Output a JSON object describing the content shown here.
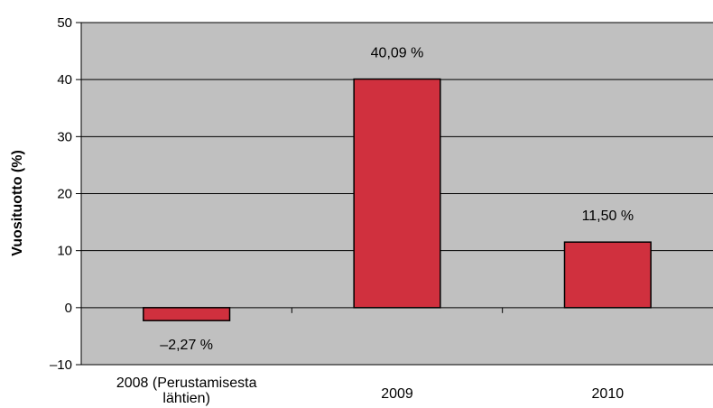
{
  "chart_data": {
    "type": "bar",
    "categories": [
      "2008 (Perustamisesta lähtien)",
      "2009",
      "2010"
    ],
    "category_lines": [
      [
        "2008 (Perustamisesta",
        "lähtien)"
      ],
      [
        "2009"
      ],
      [
        "2010"
      ]
    ],
    "values": [
      -2.27,
      40.09,
      11.5
    ],
    "data_labels": [
      "–2,27 %",
      "40,09 %",
      "11,50 %"
    ],
    "title": "",
    "xlabel": "",
    "ylabel": "Vuosituotto (%)",
    "ylim": [
      -10,
      50
    ],
    "yticks": [
      -10,
      0,
      10,
      20,
      30,
      40,
      50
    ],
    "ytick_labels": [
      "–10",
      "0",
      "10",
      "20",
      "30",
      "40",
      "50"
    ],
    "grid": true,
    "legend": "none",
    "colors": {
      "bar": "#d0303e",
      "bar_edge": "#000000",
      "plot_background": "#c0c0c0",
      "gridline": "#000000"
    }
  }
}
